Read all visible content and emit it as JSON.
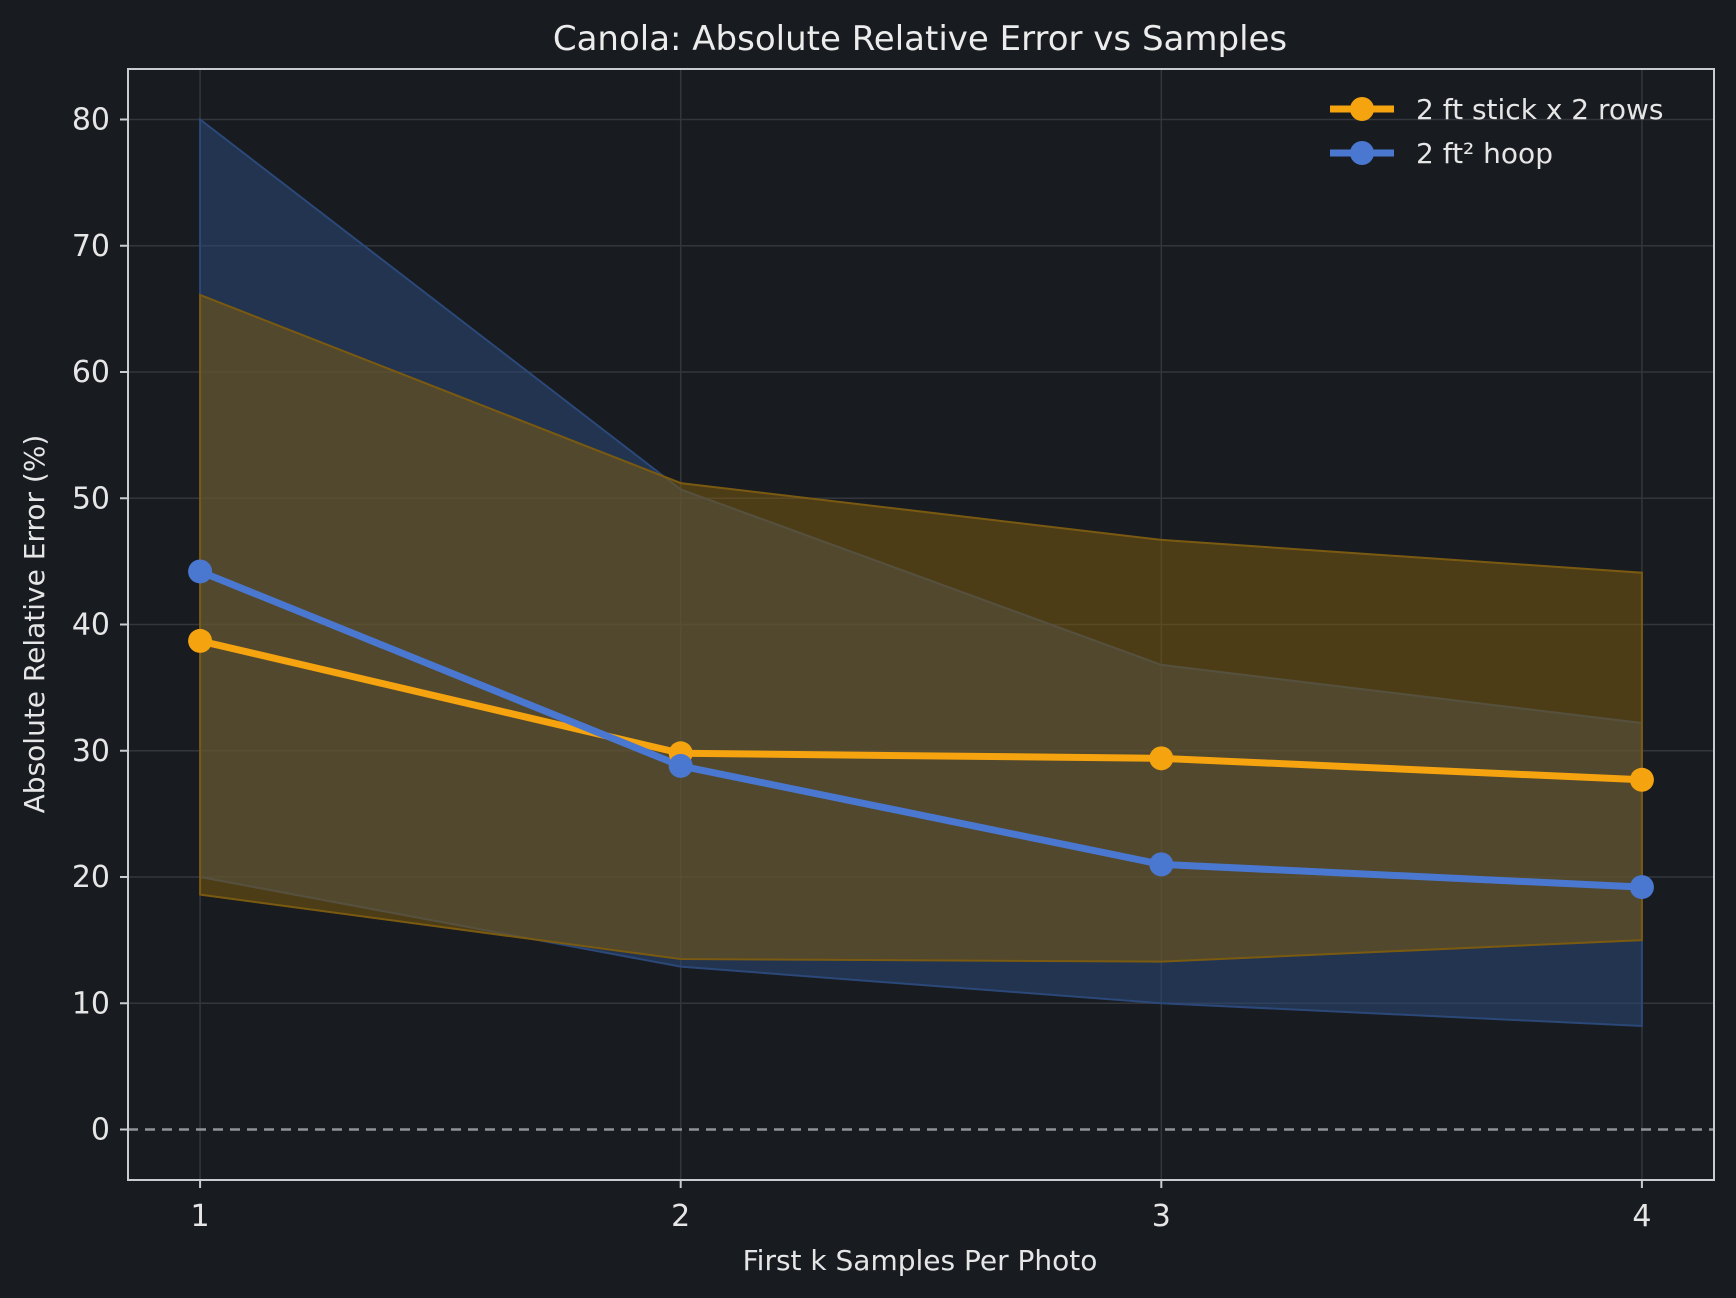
{
  "chart_data": {
    "type": "line",
    "title": "Canola: Absolute Relative Error vs Samples",
    "xlabel": "First k Samples Per Photo",
    "ylabel": "Absolute Relative Error (%)",
    "x": [
      1,
      2,
      3,
      4
    ],
    "xlim": [
      0.85,
      4.15
    ],
    "ylim": [
      -4,
      84
    ],
    "yticks": [
      0,
      10,
      20,
      30,
      40,
      50,
      60,
      70,
      80
    ],
    "xticks": [
      1,
      2,
      3,
      4
    ],
    "grid": true,
    "reference_line": {
      "y": 0,
      "style": "dashed"
    },
    "legend_position": "top-right",
    "series": [
      {
        "name": "2 ft stick x 2 rows",
        "color": "#f5a30f",
        "band_color": "#7a5a10",
        "values": [
          38.7,
          29.8,
          29.4,
          27.7
        ],
        "band_upper": [
          66.1,
          51.2,
          46.7,
          44.1
        ],
        "band_lower": [
          18.6,
          13.5,
          13.3,
          15.0
        ]
      },
      {
        "name": "2 ft² hoop",
        "color": "#4a78d0",
        "band_color": "#2b4878",
        "values": [
          44.2,
          28.8,
          21.0,
          19.2
        ],
        "band_upper": [
          80.0,
          50.7,
          36.8,
          32.2
        ],
        "band_lower": [
          20.0,
          12.9,
          10.0,
          8.2
        ]
      }
    ]
  }
}
